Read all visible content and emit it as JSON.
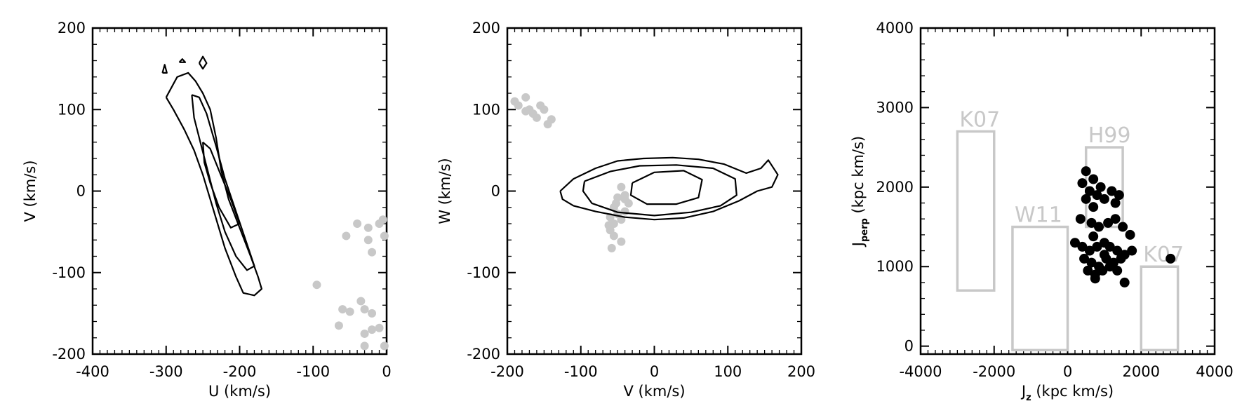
{
  "chart_data": [
    {
      "type": "scatter",
      "title": "",
      "xlabel": "U (km/s)",
      "ylabel": "V (km/s)",
      "xlim": [
        -400,
        0
      ],
      "ylim": [
        -200,
        200
      ],
      "xticks": [
        "-400",
        "-300",
        "-200",
        "-100",
        "0"
      ],
      "yticks": [
        "-200",
        "-100",
        "0",
        "100",
        "200"
      ],
      "xtickvals": [
        -400,
        -300,
        -200,
        -100,
        0
      ],
      "ytickvals": [
        -200,
        -100,
        0,
        100,
        200
      ],
      "grid": false,
      "series": [
        {
          "kind": "points",
          "color": "#c8c8c8",
          "points": [
            [
              -55,
              -55
            ],
            [
              -40,
              -40
            ],
            [
              -25,
              -60
            ],
            [
              -20,
              -75
            ],
            [
              -10,
              -40
            ],
            [
              -5,
              -35
            ],
            [
              -3,
              -55
            ],
            [
              -25,
              -45
            ],
            [
              -95,
              -115
            ],
            [
              -60,
              -145
            ],
            [
              -50,
              -148
            ],
            [
              -35,
              -135
            ],
            [
              -30,
              -145
            ],
            [
              -20,
              -150
            ],
            [
              -65,
              -165
            ],
            [
              -30,
              -175
            ],
            [
              -20,
              -170
            ],
            [
              -10,
              -168
            ],
            [
              -30,
              -190
            ],
            [
              -3,
              -190
            ]
          ]
        },
        {
          "kind": "contour",
          "color": "#000000",
          "paths": [
            [
              [
                -300,
                115
              ],
              [
                -285,
                140
              ],
              [
                -270,
                145
              ],
              [
                -260,
                135
              ],
              [
                -250,
                120
              ],
              [
                -240,
                100
              ],
              [
                -232,
                65
              ],
              [
                -225,
                25
              ],
              [
                -215,
                -10
              ],
              [
                -200,
                -45
              ],
              [
                -185,
                -80
              ],
              [
                -175,
                -105
              ],
              [
                -170,
                -120
              ],
              [
                -180,
                -128
              ],
              [
                -195,
                -125
              ],
              [
                -205,
                -105
              ],
              [
                -220,
                -70
              ],
              [
                -230,
                -40
              ],
              [
                -240,
                -10
              ],
              [
                -250,
                20
              ],
              [
                -262,
                50
              ],
              [
                -275,
                75
              ],
              [
                -290,
                100
              ],
              [
                -300,
                115
              ]
            ],
            [
              [
                -265,
                118
              ],
              [
                -255,
                115
              ],
              [
                -245,
                95
              ],
              [
                -232,
                55
              ],
              [
                -220,
                15
              ],
              [
                -205,
                -25
              ],
              [
                -190,
                -65
              ],
              [
                -180,
                -92
              ],
              [
                -190,
                -97
              ],
              [
                -205,
                -80
              ],
              [
                -220,
                -50
              ],
              [
                -232,
                -15
              ],
              [
                -242,
                20
              ],
              [
                -252,
                55
              ],
              [
                -262,
                90
              ],
              [
                -265,
                118
              ]
            ],
            [
              [
                -250,
                60
              ],
              [
                -240,
                52
              ],
              [
                -228,
                25
              ],
              [
                -212,
                -10
              ],
              [
                -200,
                -40
              ],
              [
                -212,
                -45
              ],
              [
                -228,
                -20
              ],
              [
                -240,
                10
              ],
              [
                -248,
                35
              ],
              [
                -250,
                60
              ]
            ],
            [
              [
                -305,
                145
              ],
              [
                -302,
                155
              ],
              [
                -299,
                145
              ],
              [
                -305,
                145
              ]
            ],
            [
              [
                -282,
                158
              ],
              [
                -278,
                162
              ],
              [
                -274,
                158
              ],
              [
                -282,
                158
              ]
            ],
            [
              [
                -255,
                157
              ],
              [
                -250,
                165
              ],
              [
                -245,
                157
              ],
              [
                -250,
                150
              ],
              [
                -255,
                157
              ]
            ]
          ]
        }
      ]
    },
    {
      "type": "scatter",
      "title": "",
      "xlabel": "V (km/s)",
      "ylabel": "W (km/s)",
      "xlim": [
        -200,
        200
      ],
      "ylim": [
        -200,
        200
      ],
      "xticks": [
        "-200",
        "-100",
        "0",
        "100",
        "200"
      ],
      "yticks": [
        "-200",
        "-100",
        "0",
        "100",
        "200"
      ],
      "xtickvals": [
        -200,
        -100,
        0,
        100,
        200
      ],
      "ytickvals": [
        -200,
        -100,
        0,
        100,
        200
      ],
      "grid": false,
      "series": [
        {
          "kind": "points",
          "color": "#c8c8c8",
          "points": [
            [
              -190,
              110
            ],
            [
              -185,
              105
            ],
            [
              -175,
              115
            ],
            [
              -170,
              100
            ],
            [
              -165,
              95
            ],
            [
              -160,
              90
            ],
            [
              -155,
              105
            ],
            [
              -150,
              100
            ],
            [
              -140,
              88
            ],
            [
              -145,
              82
            ],
            [
              -175,
              98
            ],
            [
              -45,
              5
            ],
            [
              -40,
              -5
            ],
            [
              -35,
              -15
            ],
            [
              -50,
              -8
            ],
            [
              -55,
              -20
            ],
            [
              -60,
              -32
            ],
            [
              -50,
              -28
            ],
            [
              -40,
              -25
            ],
            [
              -45,
              -35
            ],
            [
              -55,
              -40
            ],
            [
              -60,
              -48
            ],
            [
              -55,
              -55
            ],
            [
              -45,
              -62
            ],
            [
              -58,
              -70
            ],
            [
              -40,
              -10
            ],
            [
              -52,
              -15
            ],
            [
              -62,
              -42
            ]
          ]
        },
        {
          "kind": "contour",
          "color": "#000000",
          "paths": [
            [
              [
                -128,
                0
              ],
              [
                -110,
                15
              ],
              [
                -80,
                28
              ],
              [
                -50,
                37
              ],
              [
                -15,
                40
              ],
              [
                25,
                41
              ],
              [
                60,
                39
              ],
              [
                95,
                33
              ],
              [
                125,
                22
              ],
              [
                145,
                28
              ],
              [
                155,
                38
              ],
              [
                168,
                20
              ],
              [
                160,
                5
              ],
              [
                140,
                0
              ],
              [
                115,
                -12
              ],
              [
                80,
                -25
              ],
              [
                40,
                -33
              ],
              [
                0,
                -35
              ],
              [
                -40,
                -32
              ],
              [
                -80,
                -25
              ],
              [
                -110,
                -18
              ],
              [
                -125,
                -10
              ],
              [
                -128,
                0
              ]
            ],
            [
              [
                -95,
                12
              ],
              [
                -60,
                24
              ],
              [
                -20,
                31
              ],
              [
                30,
                32
              ],
              [
                80,
                28
              ],
              [
                110,
                15
              ],
              [
                112,
                -5
              ],
              [
                90,
                -18
              ],
              [
                50,
                -26
              ],
              [
                0,
                -30
              ],
              [
                -50,
                -26
              ],
              [
                -85,
                -15
              ],
              [
                -97,
                0
              ],
              [
                -95,
                12
              ]
            ],
            [
              [
                -30,
                10
              ],
              [
                0,
                23
              ],
              [
                40,
                25
              ],
              [
                65,
                14
              ],
              [
                60,
                -8
              ],
              [
                30,
                -16
              ],
              [
                -10,
                -16
              ],
              [
                -32,
                -5
              ],
              [
                -30,
                10
              ]
            ]
          ]
        }
      ]
    },
    {
      "type": "scatter",
      "title": "",
      "xlabel": "J",
      "xlabel_sub": "z",
      "xlabel_rest": " (kpc km/s)",
      "ylabel": "J",
      "ylabel_sub": "perp",
      "ylabel_rest": " (kpc km/s)",
      "xlim": [
        -4000,
        4000
      ],
      "ylim": [
        -100,
        4000
      ],
      "xticks": [
        "-4000",
        "-2000",
        "0",
        "2000",
        "4000"
      ],
      "yticks": [
        "0",
        "1000",
        "2000",
        "3000",
        "4000"
      ],
      "xtickvals": [
        -4000,
        -2000,
        0,
        2000,
        4000
      ],
      "ytickvals": [
        0,
        1000,
        2000,
        3000,
        4000
      ],
      "grid": false,
      "regions": [
        {
          "label": "K07",
          "x": [
            -3000,
            -2000
          ],
          "y": [
            700,
            2700
          ]
        },
        {
          "label": "W11",
          "x": [
            -1500,
            0
          ],
          "y": [
            -50,
            1500
          ]
        },
        {
          "label": "H99",
          "x": [
            500,
            1500
          ],
          "y": [
            1500,
            2500
          ]
        },
        {
          "label": "K07",
          "x": [
            2000,
            3000
          ],
          "y": [
            -50,
            1000
          ]
        }
      ],
      "series": [
        {
          "kind": "points",
          "color": "#000000",
          "points": [
            [
              500,
              2200
            ],
            [
              700,
              2100
            ],
            [
              400,
              2050
            ],
            [
              900,
              2000
            ],
            [
              600,
              1950
            ],
            [
              800,
              1900
            ],
            [
              1000,
              1850
            ],
            [
              1200,
              1950
            ],
            [
              1400,
              1900
            ],
            [
              1300,
              1800
            ],
            [
              500,
              1850
            ],
            [
              700,
              1750
            ],
            [
              350,
              1600
            ],
            [
              650,
              1550
            ],
            [
              850,
              1500
            ],
            [
              1100,
              1550
            ],
            [
              1300,
              1600
            ],
            [
              1500,
              1500
            ],
            [
              200,
              1300
            ],
            [
              400,
              1250
            ],
            [
              600,
              1200
            ],
            [
              800,
              1250
            ],
            [
              1000,
              1300
            ],
            [
              1150,
              1250
            ],
            [
              1350,
              1200
            ],
            [
              1550,
              1150
            ],
            [
              1750,
              1200
            ],
            [
              450,
              1100
            ],
            [
              650,
              1050
            ],
            [
              850,
              1000
            ],
            [
              1050,
              1100
            ],
            [
              1250,
              1050
            ],
            [
              1450,
              1100
            ],
            [
              550,
              950
            ],
            [
              750,
              900
            ],
            [
              950,
              950
            ],
            [
              1150,
              1000
            ],
            [
              1350,
              950
            ],
            [
              1550,
              800
            ],
            [
              1700,
              1400
            ],
            [
              700,
              1380
            ],
            [
              1000,
              1150
            ],
            [
              2800,
              1100
            ],
            [
              750,
              850
            ]
          ]
        }
      ]
    }
  ]
}
